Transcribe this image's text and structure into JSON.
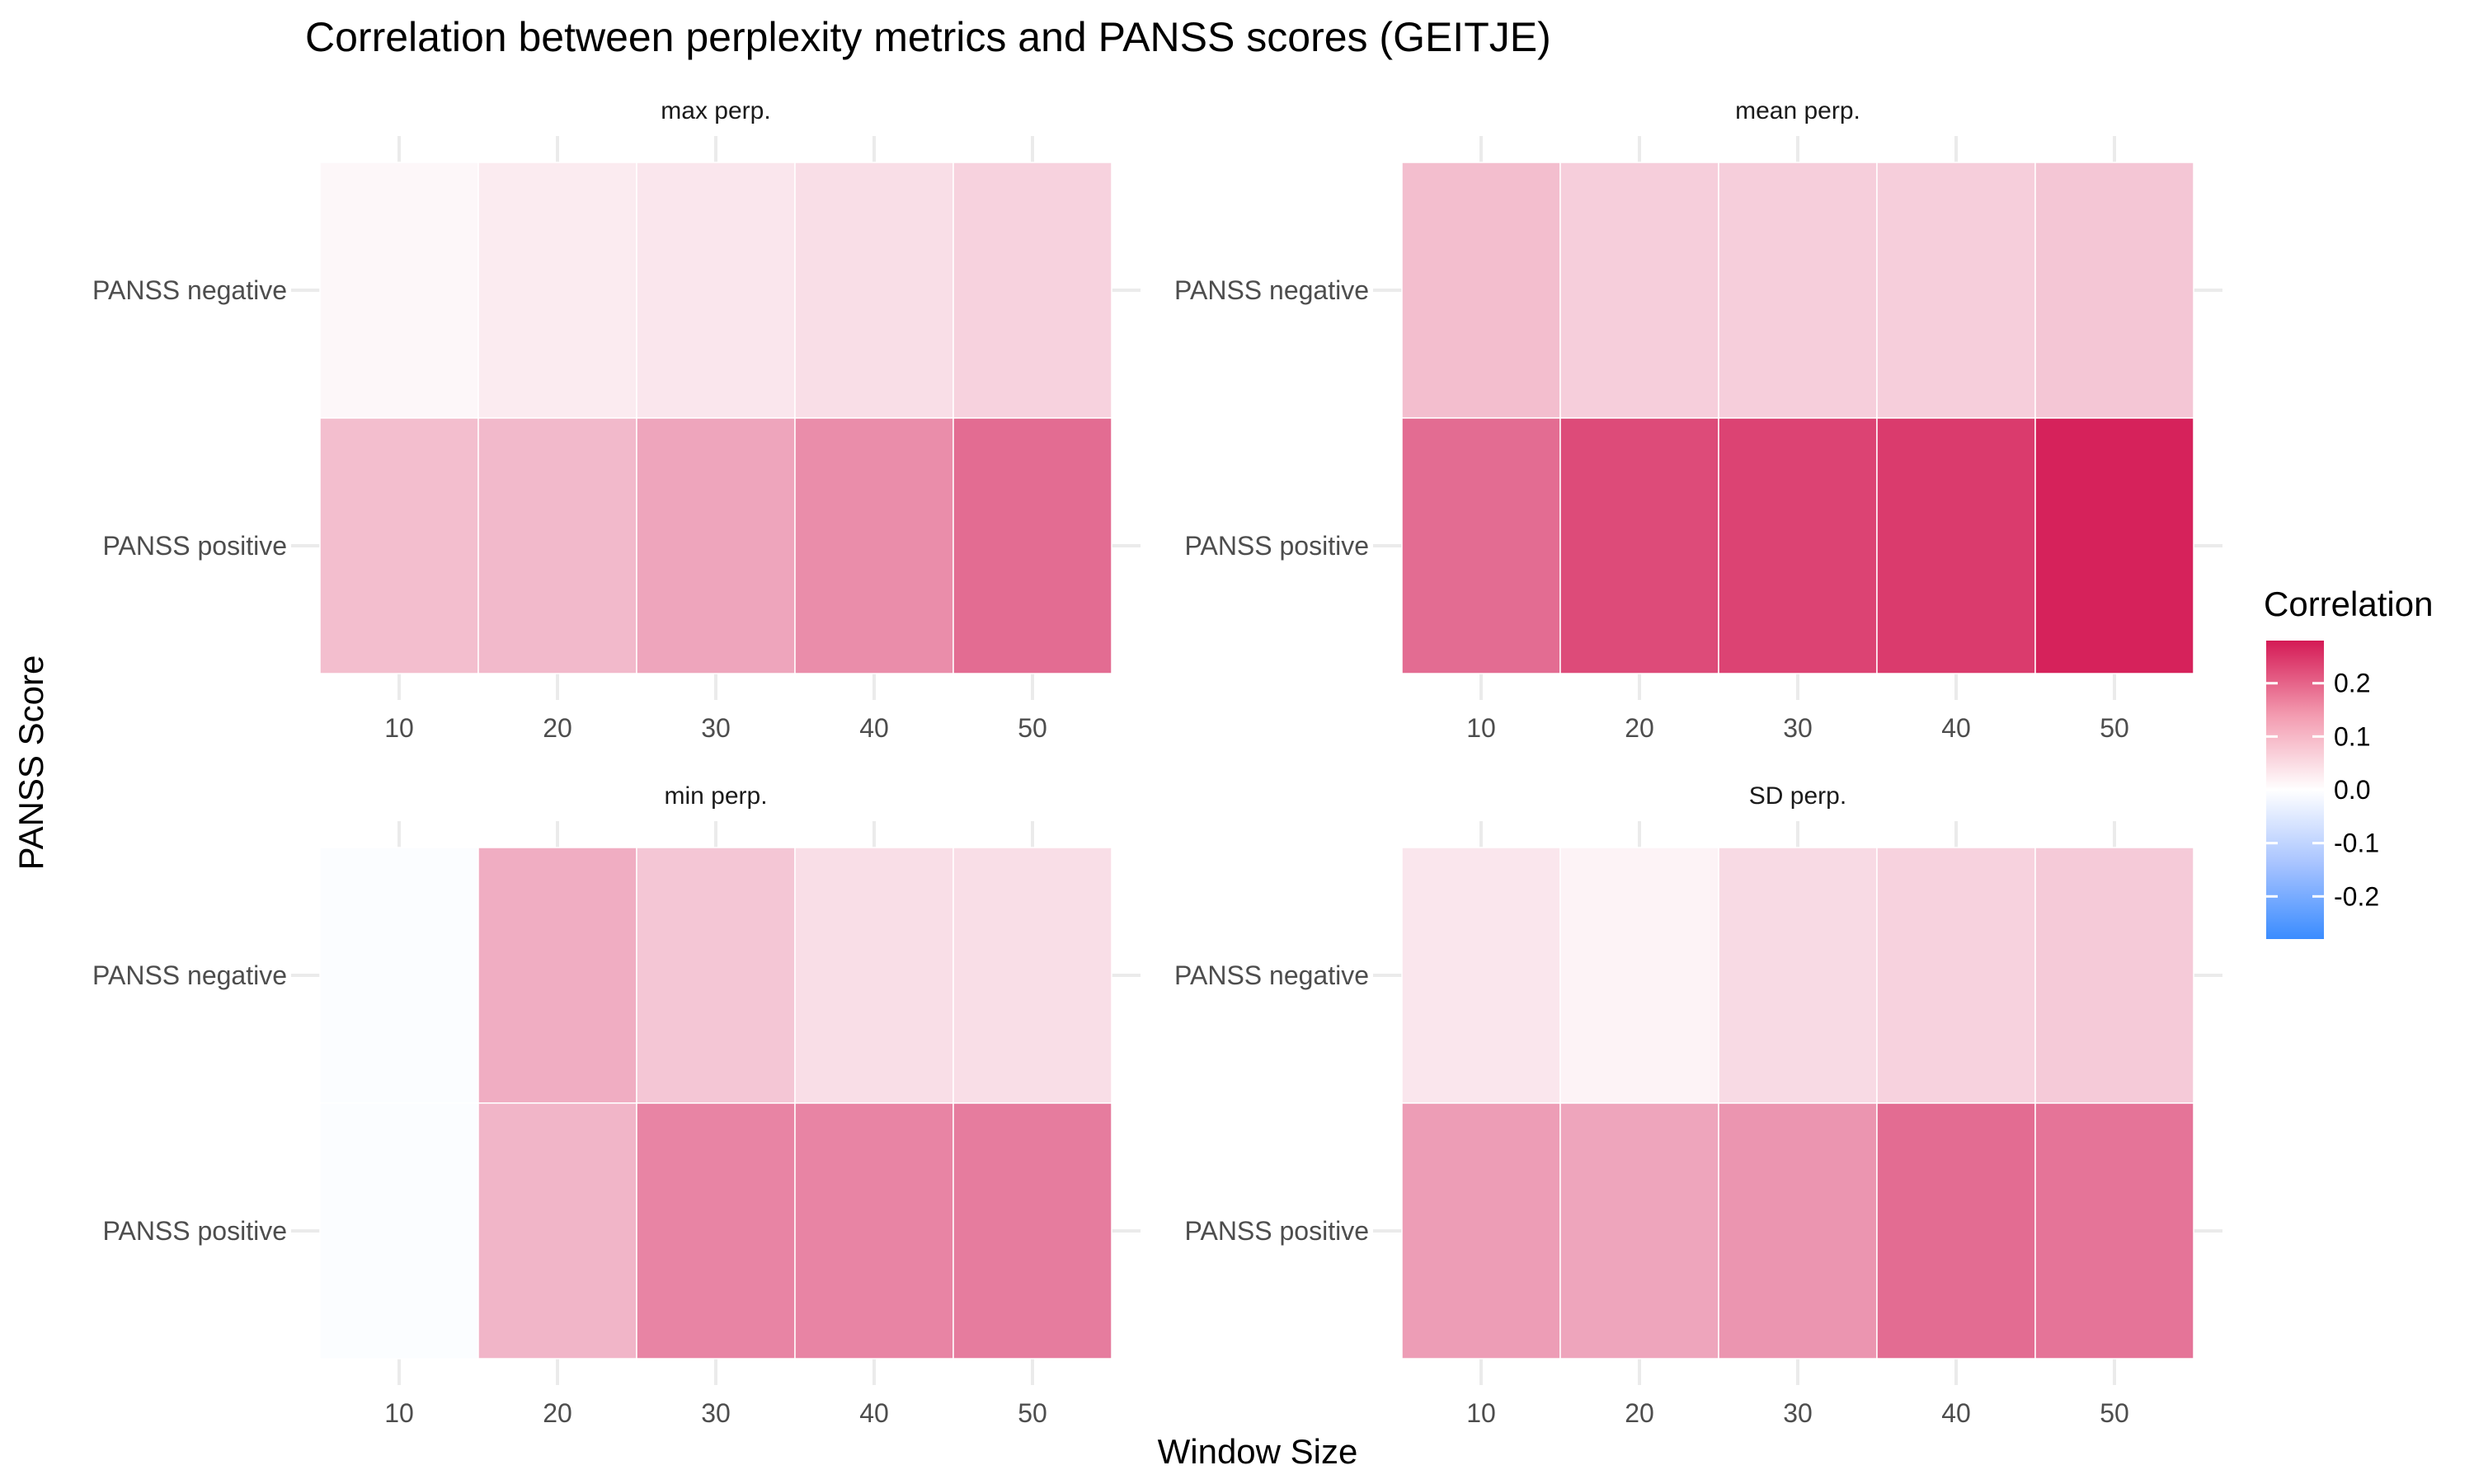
{
  "chart_data": {
    "type": "heatmap",
    "title": "Correlation between perplexity metrics and PANSS scores (GEITJE)",
    "xlabel": "Window Size",
    "ylabel": "PANSS Score",
    "x": [
      10,
      20,
      30,
      40,
      50
    ],
    "x_tick_labels": [
      "10",
      "20",
      "30",
      "40",
      "50"
    ],
    "y": [
      "PANSS negative",
      "PANSS positive"
    ],
    "color_scale": {
      "low": "#3a8cff",
      "mid": "#ffffff",
      "high": "#d41a55",
      "limits": [
        -0.28,
        0.28
      ]
    },
    "legend": {
      "title": "Correlation",
      "position": "right",
      "breaks": [
        0.2,
        0.1,
        0.0,
        -0.1,
        -0.2
      ],
      "labels": [
        "0.2",
        "0.1",
        "0.0",
        "-0.1",
        "-0.2"
      ]
    },
    "panels": [
      {
        "label": "max perp.",
        "values": {
          "PANSS negative": [
            0.01,
            0.025,
            0.03,
            0.04,
            0.055
          ],
          "PANSS positive": [
            0.08,
            0.085,
            0.11,
            0.14,
            0.18
          ]
        }
      },
      {
        "label": "mean perp.",
        "values": {
          "PANSS negative": [
            0.08,
            0.06,
            0.06,
            0.06,
            0.07
          ],
          "PANSS positive": [
            0.18,
            0.22,
            0.23,
            0.24,
            0.27
          ]
        }
      },
      {
        "label": "min perp.",
        "values": {
          "PANSS negative": [
            -0.005,
            0.1,
            0.07,
            0.04,
            0.04
          ],
          "PANSS positive": [
            -0.005,
            0.09,
            0.15,
            0.15,
            0.16
          ]
        }
      },
      {
        "label": "SD perp.",
        "values": {
          "PANSS negative": [
            0.03,
            0.015,
            0.045,
            0.055,
            0.065
          ],
          "PANSS positive": [
            0.12,
            0.11,
            0.13,
            0.18,
            0.17
          ]
        }
      }
    ]
  }
}
